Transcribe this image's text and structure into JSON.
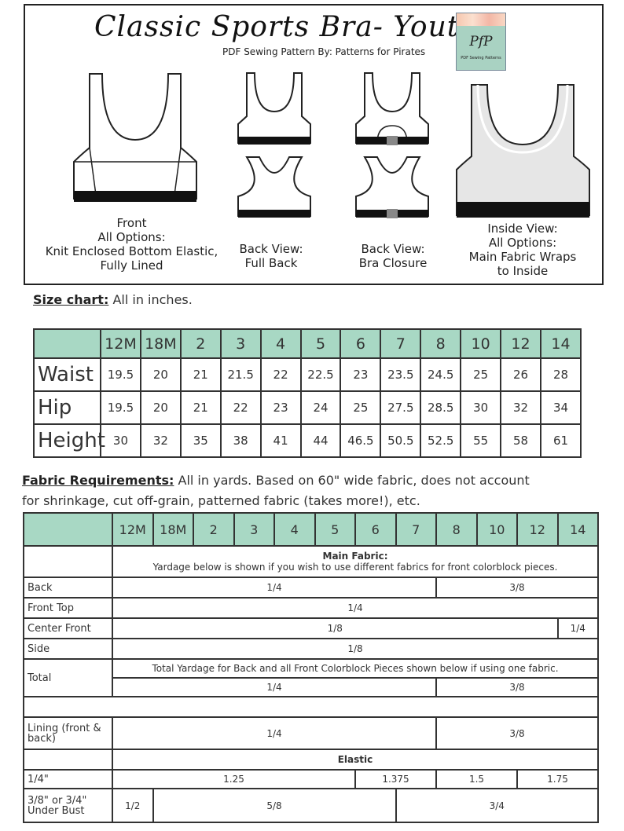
{
  "header": {
    "title": "Classic Sports Bra- Youth",
    "subtitle": "PDF Sewing Pattern  By: Patterns for Pirates",
    "logo": {
      "mark": "PfP",
      "tag": "PDF Sewing Patterns"
    }
  },
  "views": [
    {
      "lines": [
        "Front",
        "All Options:",
        "Knit Enclosed Bottom Elastic,",
        "Fully Lined"
      ]
    },
    {
      "lines": [
        "Back View:",
        "Full Back"
      ]
    },
    {
      "lines": [
        "Back View:",
        "Bra Closure"
      ]
    },
    {
      "lines": [
        "Inside View:",
        "All Options:",
        "Main Fabric Wraps",
        "to Inside"
      ]
    }
  ],
  "size_chart": {
    "heading": "Size chart:",
    "note": "All in inches.",
    "sizes": [
      "12M",
      "18M",
      "2",
      "3",
      "4",
      "5",
      "6",
      "7",
      "8",
      "10",
      "12",
      "14"
    ],
    "rows": [
      {
        "label": "Waist",
        "values": [
          "19.5",
          "20",
          "21",
          "21.5",
          "22",
          "22.5",
          "23",
          "23.5",
          "24.5",
          "25",
          "26",
          "28"
        ]
      },
      {
        "label": "Hip",
        "values": [
          "19.5",
          "20",
          "21",
          "22",
          "23",
          "24",
          "25",
          "27.5",
          "28.5",
          "30",
          "32",
          "34"
        ]
      },
      {
        "label": "Height",
        "values": [
          "30",
          "32",
          "35",
          "38",
          "41",
          "44",
          "46.5",
          "50.5",
          "52.5",
          "55",
          "58",
          "61"
        ]
      }
    ]
  },
  "fabric": {
    "heading": "Fabric Requirements:",
    "note_line1": "All in yards. Based on 60\" wide fabric, does not account",
    "note_line2": "for shrinkage, cut off-grain, patterned fabric (takes more!), etc.",
    "sizes": [
      "12M",
      "18M",
      "2",
      "3",
      "4",
      "5",
      "6",
      "7",
      "8",
      "10",
      "12",
      "14"
    ],
    "main_fabric_title": "Main Fabric:",
    "main_fabric_note": "Yardage below is shown if you wish to use different fabrics for front colorblock pieces.",
    "rows": [
      {
        "label": "Back",
        "cells": [
          {
            "value": "1/4",
            "span": 8
          },
          {
            "value": "3/8",
            "span": 4
          }
        ]
      },
      {
        "label": "Front Top",
        "cells": [
          {
            "value": "1/4",
            "span": 12
          }
        ]
      },
      {
        "label": "Center Front",
        "cells": [
          {
            "value": "1/8",
            "span": 11
          },
          {
            "value": "1/4",
            "span": 1
          }
        ]
      },
      {
        "label": "Side",
        "cells": [
          {
            "value": "1/8",
            "span": 12
          }
        ]
      }
    ],
    "total": {
      "label": "Total",
      "note": "Total Yardage for Back and all Front Colorblock Pieces shown below if using one fabric.",
      "cells": [
        {
          "value": "1/4",
          "span": 8
        },
        {
          "value": "3/8",
          "span": 4
        }
      ]
    },
    "lining": {
      "label": "Lining (front & back)",
      "cells": [
        {
          "value": "1/4",
          "span": 8
        },
        {
          "value": "3/8",
          "span": 4
        }
      ]
    },
    "elastic_title": "Elastic",
    "elastic_rows": [
      {
        "label": "1/4\"",
        "cells": [
          {
            "value": "1.25",
            "span": 6
          },
          {
            "value": "1.375",
            "span": 2
          },
          {
            "value": "1.5",
            "span": 2
          },
          {
            "value": "1.75",
            "span": 2
          }
        ]
      },
      {
        "label": "3/8\" or 3/4\" Under Bust",
        "cells": [
          {
            "value": "1/2",
            "span": 1
          },
          {
            "value": "5/8",
            "span": 6
          },
          {
            "value": "3/4",
            "span": 5
          }
        ]
      }
    ]
  },
  "colors": {
    "header_teal": "#a8d8c4",
    "band": "#111111",
    "inside_fill": "#e6e6e6"
  }
}
